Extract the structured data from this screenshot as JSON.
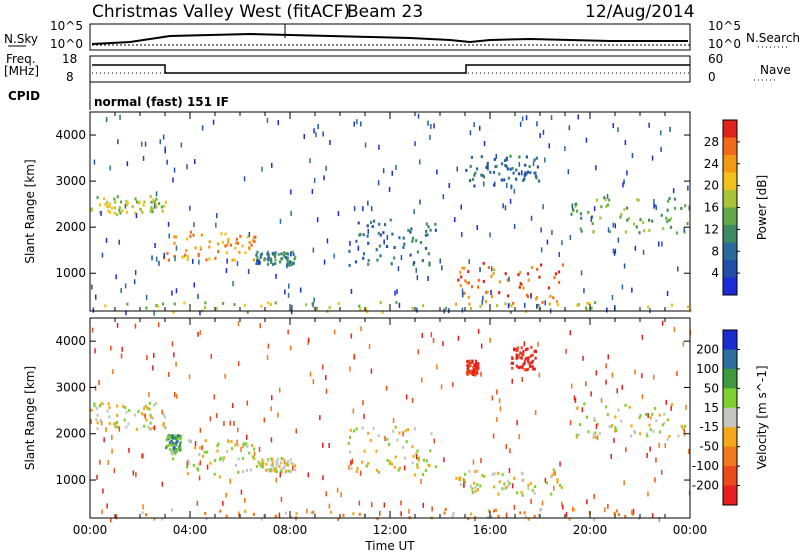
{
  "header": {
    "title_station": "Christmas Valley West (fitACF)",
    "title_beam": "Beam 23",
    "date": "12/Aug/2014",
    "cpid_label": "CPID",
    "cpid_value": "normal (fast) 151 IF"
  },
  "panels": {
    "nsky": {
      "label": "N.Sky",
      "ticks": [
        "10^5",
        "10^0"
      ],
      "right_label": "N.Search",
      "right_ticks": [
        "10^5",
        "10^0"
      ]
    },
    "freq": {
      "label_line1": "Freq.",
      "label_line2": "[MHz]",
      "ticks": [
        "18",
        "8"
      ],
      "right_label": "Nave",
      "right_ticks": [
        "60",
        "0"
      ]
    }
  },
  "chart_data": [
    {
      "type": "heatmap",
      "name": "power",
      "ylabel": "Slant Range [km]",
      "ylim": [
        180,
        4500
      ],
      "yticks": [
        1000,
        2000,
        3000,
        4000
      ],
      "xlim": [
        0,
        24
      ],
      "color_label": "Power [dB]",
      "color_ticks": [
        4,
        8,
        12,
        16,
        20,
        24,
        28
      ],
      "colors": [
        "#1d2bd6",
        "#1f4fa8",
        "#2a6b9c",
        "#3f8a62",
        "#60a848",
        "#a8c53a",
        "#f2c21b",
        "#f29a14",
        "#f06b1a",
        "#e0231f"
      ],
      "blobs": [
        {
          "x0": 0.0,
          "x1": 3.0,
          "r0": 2300,
          "r1": 2700,
          "level": 5
        },
        {
          "x0": 2.9,
          "x1": 6.6,
          "r0": 1300,
          "r1": 1950,
          "level": 7
        },
        {
          "x0": 6.6,
          "x1": 8.2,
          "r0": 1200,
          "r1": 1500,
          "level": 3
        },
        {
          "x0": 10.3,
          "x1": 13.8,
          "r0": 1200,
          "r1": 2200,
          "level": 2
        },
        {
          "x0": 14.6,
          "x1": 19.0,
          "r0": 350,
          "r1": 1250,
          "level": 8
        },
        {
          "x0": 15.0,
          "x1": 18.0,
          "r0": 2900,
          "r1": 3600,
          "level": 2
        },
        {
          "x0": 19.2,
          "x1": 24.0,
          "r0": 1900,
          "r1": 2700,
          "level": 4
        },
        {
          "x0": 0.0,
          "x1": 24.0,
          "r0": 180,
          "r1": 400,
          "level": 5
        }
      ]
    },
    {
      "type": "heatmap",
      "name": "velocity",
      "ylabel": "Slant Range [km]",
      "ylim": [
        180,
        4500
      ],
      "yticks": [
        1000,
        2000,
        3000,
        4000
      ],
      "xlim": [
        0,
        24
      ],
      "xticks": [
        "00:00",
        "04:00",
        "08:00",
        "12:00",
        "16:00",
        "20:00",
        "00:00"
      ],
      "xlabel": "Time UT",
      "color_label": "Velocity [m s^-1]",
      "color_ticks": [
        200,
        100,
        50,
        15,
        -15,
        -50,
        -100,
        -200
      ],
      "colors": [
        "#1a2bcf",
        "#2c6f9e",
        "#3f9a3f",
        "#7fd12f",
        "#c6c6c0",
        "#f5a81a",
        "#f2791c",
        "#ec4a1d",
        "#e51f1f"
      ],
      "blobs": [
        {
          "x0": 0.0,
          "x1": 3.0,
          "r0": 2100,
          "r1": 2700,
          "level": 4
        },
        {
          "x0": 2.9,
          "x1": 6.6,
          "r0": 1100,
          "r1": 1900,
          "level": 4
        },
        {
          "x0": 3.0,
          "x1": 3.6,
          "r0": 1650,
          "r1": 2000,
          "level": 2
        },
        {
          "x0": 6.6,
          "x1": 8.2,
          "r0": 1200,
          "r1": 1500,
          "level": 4
        },
        {
          "x0": 10.3,
          "x1": 13.8,
          "r0": 1100,
          "r1": 2200,
          "level": 4
        },
        {
          "x0": 14.6,
          "x1": 19.0,
          "r0": 700,
          "r1": 1250,
          "level": 4
        },
        {
          "x0": 15.0,
          "x1": 15.5,
          "r0": 3300,
          "r1": 3600,
          "level": 8
        },
        {
          "x0": 16.8,
          "x1": 17.8,
          "r0": 3400,
          "r1": 3900,
          "level": 8
        },
        {
          "x0": 19.2,
          "x1": 24.0,
          "r0": 1900,
          "r1": 2700,
          "level": 4
        },
        {
          "x0": 2.0,
          "x1": 22.0,
          "r0": 180,
          "r1": 400,
          "level": 5
        }
      ]
    }
  ]
}
